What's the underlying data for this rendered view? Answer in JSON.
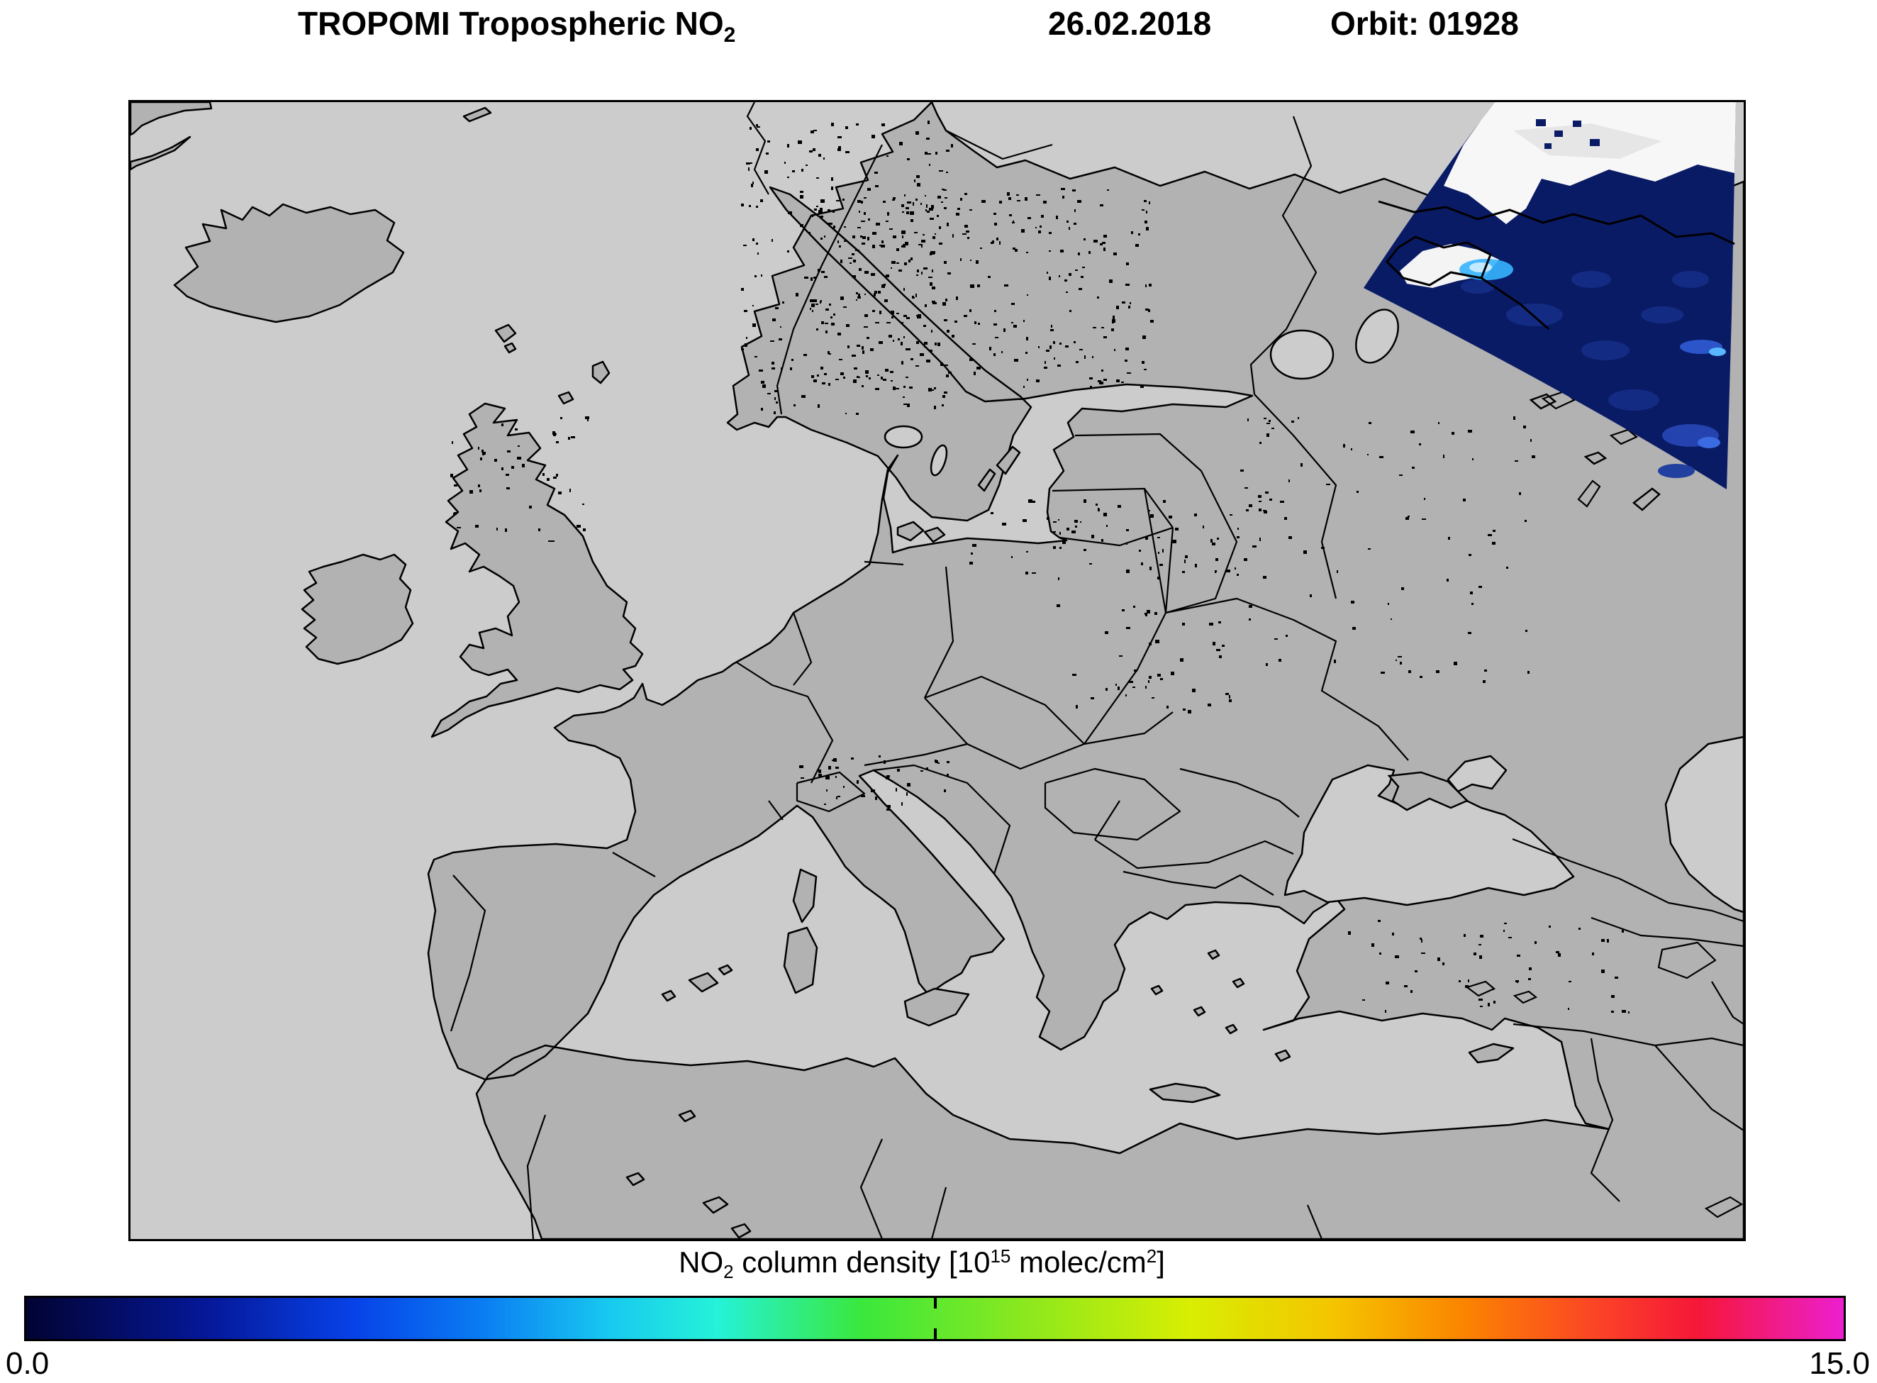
{
  "header": {
    "title": "TROPOMI Tropospheric NO",
    "title_subscript": "2",
    "date": "26.02.2018",
    "orbit": "Orbit: 01928"
  },
  "colorbar": {
    "min_label": "0.0",
    "max_label": "15.0",
    "caption": {
      "prefix": "NO",
      "sub": "2",
      "middle": " column density [10",
      "sup": "15",
      "after_sup": " molec/cm",
      "sup2": "2",
      "suffix": "]"
    },
    "gradient": [
      "#020333 0%",
      "#051899 10%",
      "#0742e8 18%",
      "#0a7cf2 25%",
      "#18c8f0 32%",
      "#25f2d8 38%",
      "#3ae83c 46%",
      "#8ce81e 55%",
      "#d8ee02 64%",
      "#f5c400 72%",
      "#fb8500 79%",
      "#fb4724 86%",
      "#f51738 92%",
      "#ec1fd0 100%"
    ]
  },
  "map": {
    "colors": {
      "sea": "#cccccc",
      "land": "#b2b2b2",
      "coastline": "#000000",
      "swath_dark": "#0a1b66",
      "swath_cloud": "#f7f7f7",
      "swath_hotspot": "#8fd4ff"
    }
  }
}
